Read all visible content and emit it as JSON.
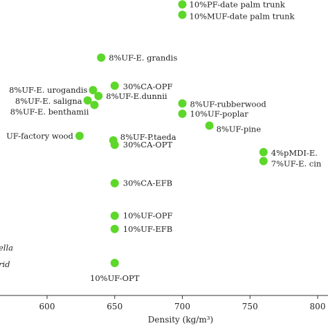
{
  "chart_data": {
    "type": "scatter",
    "xlabel": "Density (kg/m³)",
    "ylabel": "",
    "xlim": [
      555,
      815
    ],
    "ylim": [
      0,
      100
    ],
    "x_ticks": [
      600,
      650,
      700,
      750,
      800
    ],
    "grid": false,
    "marker_color": "#5dd72a",
    "points": [
      {
        "x": 700,
        "y": 98.5,
        "label": "10%PF-date palm trunk"
      },
      {
        "x": 700,
        "y": 95.0,
        "label": "10%MUF-date palm trunk"
      },
      {
        "x": 640,
        "y": 80.5,
        "label": "8%UF-E. grandis"
      },
      {
        "x": 650,
        "y": 71.0,
        "label": "30%CA-OPF"
      },
      {
        "x": 634,
        "y": 69.5,
        "label": "8%UF-E. urogandis"
      },
      {
        "x": 638,
        "y": 67.5,
        "label": "8%UF-E.dunnii"
      },
      {
        "x": 630,
        "y": 66.0,
        "label": "8%UF-E. saligna"
      },
      {
        "x": 635,
        "y": 64.5,
        "label": "8%UF-E. benthamii"
      },
      {
        "x": 700,
        "y": 65.0,
        "label": "8%UF-rubberwood"
      },
      {
        "x": 700,
        "y": 61.5,
        "label": "10%UF-poplar"
      },
      {
        "x": 720,
        "y": 57.5,
        "label": "8%UF-pine"
      },
      {
        "x": 624,
        "y": 54.0,
        "label": "UF-factory wood"
      },
      {
        "x": 649,
        "y": 52.5,
        "label": "8%UF-P.taeda"
      },
      {
        "x": 650,
        "y": 51.0,
        "label": "30%CA-OPT"
      },
      {
        "x": 760,
        "y": 48.5,
        "label": "4%pMDI-E."
      },
      {
        "x": 760,
        "y": 45.5,
        "label": "7%UF-E. cin"
      },
      {
        "x": 650,
        "y": 38.0,
        "label": "30%CA-EFB"
      },
      {
        "x": 650,
        "y": 27.0,
        "label": "10%UF-OPF"
      },
      {
        "x": 650,
        "y": 22.5,
        "label": "10%UF-EFB"
      },
      {
        "x": 650,
        "y": 11.0,
        "label": "10%UF-OPT"
      }
    ],
    "annotations": [
      "ella",
      "rid"
    ]
  }
}
